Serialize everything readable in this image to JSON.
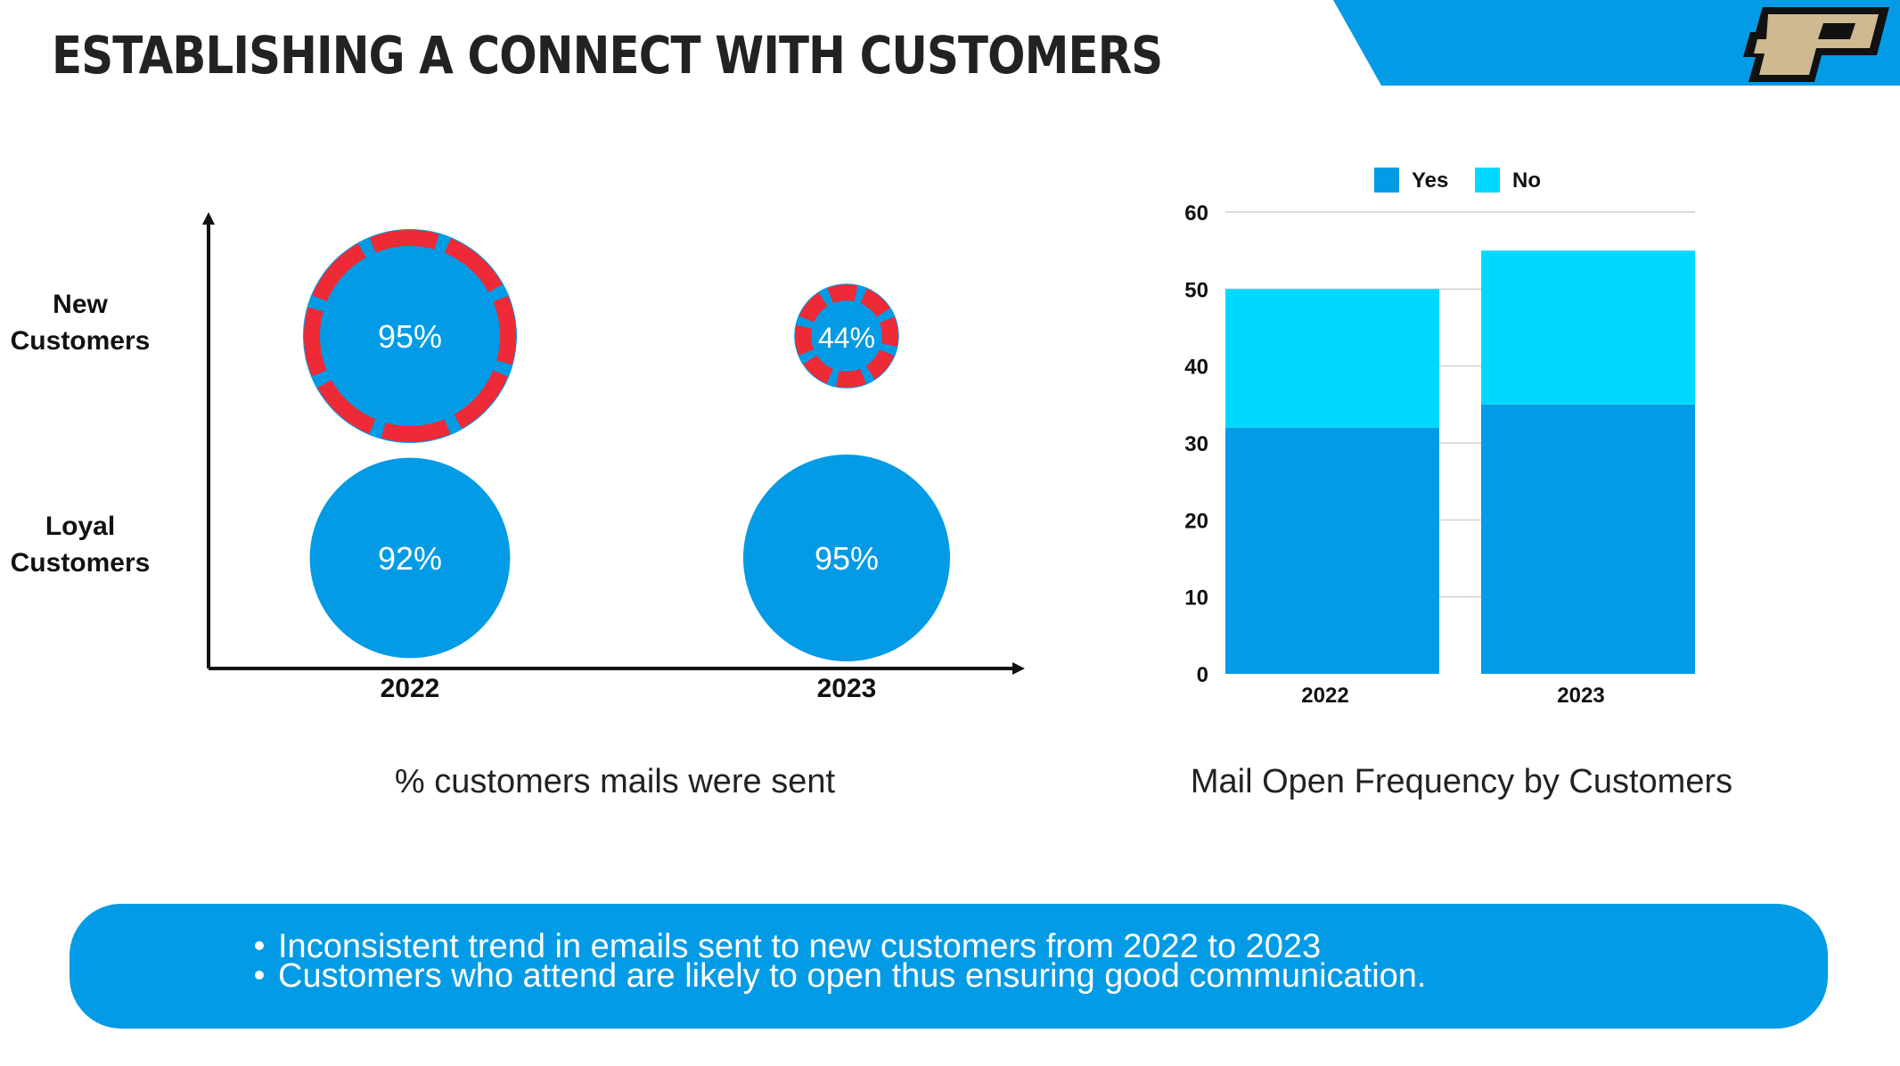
{
  "page": {
    "title": "ESTABLISHING A CONNECT WITH CUSTOMERS",
    "logo_letter": "P"
  },
  "colors": {
    "accent": "#039be5",
    "no_series": "#00d9ff",
    "ring": "#ee2a36",
    "logo_gold": "#cfb991",
    "text": "#222222"
  },
  "bubble_chart": {
    "caption": "% customers mails were sent"
  },
  "bar_chart": {
    "caption": "Mail Open Frequency by Customers"
  },
  "notes": {
    "items": [
      "Inconsistent trend in emails sent to new customers from 2022 to 2023",
      "Customers who attend are likely to open thus ensuring good communication."
    ]
  },
  "chart_data": [
    {
      "type": "scatter",
      "x_categories": [
        "2022",
        "2023"
      ],
      "y_categories": [
        "New Customers",
        "Loyal Customers"
      ],
      "points": [
        {
          "x": "2022",
          "y": "New Customers",
          "value": 95,
          "label": "95%",
          "highlighted": true
        },
        {
          "x": "2023",
          "y": "New Customers",
          "value": 44,
          "label": "44%",
          "highlighted": true
        },
        {
          "x": "2022",
          "y": "Loyal Customers",
          "value": 92,
          "label": "92%",
          "highlighted": false
        },
        {
          "x": "2023",
          "y": "Loyal Customers",
          "value": 95,
          "label": "95%",
          "highlighted": false
        }
      ]
    },
    {
      "type": "bar",
      "stacked": true,
      "categories": [
        "2022",
        "2023"
      ],
      "series": [
        {
          "name": "Yes",
          "values": [
            32,
            35
          ],
          "color": "#039be5"
        },
        {
          "name": "No",
          "values": [
            18,
            20
          ],
          "color": "#00d9ff"
        }
      ],
      "ylim": [
        0,
        60
      ],
      "yticks": [
        0,
        10,
        20,
        30,
        40,
        50,
        60
      ],
      "grid": true,
      "legend": "top"
    }
  ]
}
